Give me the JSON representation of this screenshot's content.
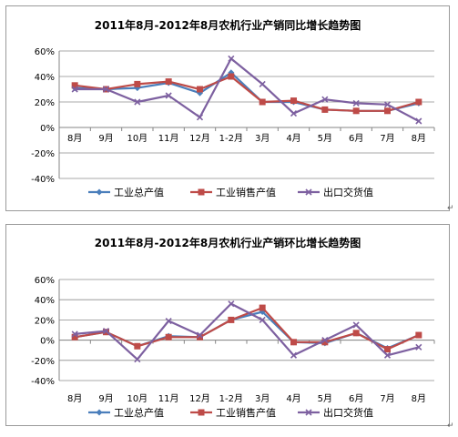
{
  "page": {
    "return_mark": "↵"
  },
  "chart_data": [
    {
      "type": "line",
      "title": "2011年8月-2012年8月农机行业产销同比增长趋势图",
      "categories": [
        "8月",
        "9月",
        "10月",
        "11月",
        "12月",
        "1-2月",
        "3月",
        "4月",
        "5月",
        "6月",
        "7月",
        "8月"
      ],
      "ylim": [
        -40,
        60
      ],
      "yticks": [
        "60%",
        "40%",
        "20%",
        "0%",
        "-20%",
        "-40%"
      ],
      "ytick_values": [
        60,
        40,
        20,
        0,
        -20,
        -40
      ],
      "grid": true,
      "legend": "bottom",
      "series": [
        {
          "name": "工业总产值",
          "color": "#4a7ebb",
          "marker": "diamond",
          "values": [
            31,
            30,
            31,
            35,
            27,
            43,
            20,
            20,
            14,
            13,
            13,
            19
          ]
        },
        {
          "name": "工业销售产值",
          "color": "#be4b48",
          "marker": "square",
          "values": [
            33,
            30,
            34,
            36,
            30,
            40,
            20,
            21,
            14,
            13,
            13,
            20
          ]
        },
        {
          "name": "出口交货值",
          "color": "#7d60a0",
          "marker": "x",
          "values": [
            30,
            30,
            20,
            25,
            8,
            54,
            34,
            11,
            22,
            19,
            18,
            5
          ]
        }
      ]
    },
    {
      "type": "line",
      "title": "2011年8月-2012年8月农机行业产销环比增长趋势图",
      "categories": [
        "8月",
        "9月",
        "10月",
        "11月",
        "12月",
        "1-2月",
        "3月",
        "4月",
        "5月",
        "6月",
        "7月",
        "8月"
      ],
      "ylim": [
        -40,
        60
      ],
      "yticks": [
        "60%",
        "40%",
        "20%",
        "0%",
        "-20%",
        "-40%"
      ],
      "ytick_values": [
        60,
        40,
        20,
        0,
        -20,
        -40
      ],
      "grid": true,
      "legend": "bottom",
      "series": [
        {
          "name": "工业总产值",
          "color": "#4a7ebb",
          "marker": "diamond",
          "values": [
            3,
            8,
            -6,
            4,
            3,
            20,
            28,
            -2,
            -3,
            7,
            -8,
            5
          ]
        },
        {
          "name": "工业销售产值",
          "color": "#be4b48",
          "marker": "square",
          "values": [
            3,
            8,
            -6,
            3,
            3,
            20,
            32,
            -2,
            -2,
            7,
            -9,
            5
          ]
        },
        {
          "name": "出口交货值",
          "color": "#7d60a0",
          "marker": "x",
          "values": [
            6,
            9,
            -19,
            19,
            5,
            36,
            20,
            -15,
            0,
            15,
            -15,
            -7
          ]
        }
      ]
    }
  ]
}
